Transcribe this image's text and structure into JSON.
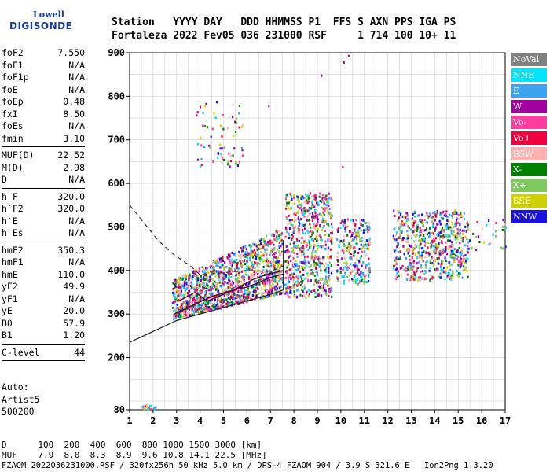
{
  "logo": {
    "line1": "Lowell",
    "line2": "DIGISONDE"
  },
  "header": {
    "line1": "Station   YYYY DAY   DDD HHMMSS P1  FFS S AXN PPS IGA PS",
    "line2": "Fortaleza 2022 Fev05 036 231000 RSF     1 714 100 10+ 11"
  },
  "params": {
    "group1": [
      {
        "name": "foF2",
        "value": "7.550"
      },
      {
        "name": "foF1",
        "value": "N/A"
      },
      {
        "name": "foF1p",
        "value": "N/A"
      },
      {
        "name": "foE",
        "value": "N/A"
      },
      {
        "name": "foEp",
        "value": "0.48"
      },
      {
        "name": "fxI",
        "value": "8.50"
      },
      {
        "name": "foEs",
        "value": "N/A"
      },
      {
        "name": "fmin",
        "value": "3.10"
      }
    ],
    "group2": [
      {
        "name": "MUF(D)",
        "value": "22.52"
      },
      {
        "name": "M(D)",
        "value": "2.98"
      },
      {
        "name": "D",
        "value": "N/A"
      }
    ],
    "group3": [
      {
        "name": "h`F",
        "value": "320.0"
      },
      {
        "name": "h`F2",
        "value": "320.0"
      },
      {
        "name": "h`E",
        "value": "N/A"
      },
      {
        "name": "h`Es",
        "value": "N/A"
      }
    ],
    "group4": [
      {
        "name": "hmF2",
        "value": "350.3"
      },
      {
        "name": "hmF1",
        "value": "N/A"
      },
      {
        "name": "hmE",
        "value": "110.0"
      },
      {
        "name": "yF2",
        "value": "49.9"
      },
      {
        "name": "yF1",
        "value": "N/A"
      },
      {
        "name": "yE",
        "value": "20.0"
      },
      {
        "name": "B0",
        "value": "57.9"
      },
      {
        "name": "B1",
        "value": "1.20"
      }
    ],
    "group5": [
      {
        "name": "C-level",
        "value": "44"
      }
    ]
  },
  "auto": {
    "line1": "Auto:",
    "line2": "Artist5",
    "line3": "500200"
  },
  "legend": [
    {
      "label": "NoVal",
      "color": "#808080"
    },
    {
      "label": "NNE",
      "color": "#00e5ff"
    },
    {
      "label": "E",
      "color": "#3ea0f0"
    },
    {
      "label": "W",
      "color": "#a000a0"
    },
    {
      "label": "Vo-",
      "color": "#ff3ca0"
    },
    {
      "label": "Vo+",
      "color": "#f00040"
    },
    {
      "label": "SSW",
      "color": "#ffb0b0"
    },
    {
      "label": "X-",
      "color": "#008000"
    },
    {
      "label": "X+",
      "color": "#80c860"
    },
    {
      "label": "SSE",
      "color": "#d0d000"
    },
    {
      "label": "NNW",
      "color": "#1a10e0"
    }
  ],
  "footer": {
    "line1": "D      100  200  400  600  800 1000 1500 3000 [km]",
    "line2": "MUF    7.9  8.0  8.3  8.9  9.6 10.8 14.1 22.5 [MHz]",
    "line3": "FZAOM_2022036231000.RSF / 320fx256h 50 kHz 5.0 km / DPS-4 FZAOM 904 / 3.9 S 321.6 E   Ion2Png 1.3.20"
  },
  "chart_data": {
    "type": "scatter",
    "title": "",
    "xlabel": "",
    "ylabel": "",
    "xlim": [
      1,
      17
    ],
    "ylim": [
      80,
      900
    ],
    "xticks": [
      1,
      2,
      3,
      4,
      5,
      6,
      7,
      8,
      9,
      10,
      11,
      12,
      13,
      14,
      15,
      16,
      17
    ],
    "yticks": [
      80,
      200,
      300,
      400,
      500,
      600,
      700,
      800,
      900
    ],
    "grid": true,
    "legend_position": "right",
    "clusters": [
      {
        "x": [
          2.8,
          7.5
        ],
        "y": [
          290,
          470
        ],
        "n": 1400
      },
      {
        "x": [
          7.6,
          9.6
        ],
        "y": [
          340,
          580
        ],
        "n": 650
      },
      {
        "x": [
          9.8,
          11.2
        ],
        "y": [
          370,
          520
        ],
        "n": 260
      },
      {
        "x": [
          12.2,
          15.4
        ],
        "y": [
          380,
          540
        ],
        "n": 650
      },
      {
        "x": [
          3.8,
          5.8
        ],
        "y": [
          640,
          790
        ],
        "n": 70
      },
      {
        "x": [
          15.4,
          17
        ],
        "y": [
          440,
          520
        ],
        "n": 30
      },
      {
        "x": [
          1.5,
          2.1
        ],
        "y": [
          82,
          95
        ],
        "n": 24
      }
    ],
    "lower_trace": {
      "x": [
        2.9,
        3.5,
        4.0,
        4.5,
        5.0,
        5.5,
        6.0,
        6.5,
        7.0,
        7.55
      ],
      "y": [
        300,
        315,
        328,
        340,
        348,
        356,
        362,
        372,
        384,
        392
      ]
    },
    "upper_trace": {
      "x": [
        3.1,
        3.8,
        4.3,
        5.0,
        5.6,
        6.2,
        6.8,
        7.2,
        7.55
      ],
      "y": [
        330,
        350,
        330,
        345,
        360,
        378,
        390,
        395,
        400
      ]
    },
    "dashed_profile": {
      "x": [
        1.0,
        1.6,
        2.2,
        2.8,
        3.2,
        3.6,
        4.0,
        5.0,
        6.0,
        7.0,
        7.55
      ],
      "y": [
        550,
        510,
        470,
        440,
        425,
        410,
        390,
        395,
        400,
        398,
        410
      ]
    },
    "lower_profile": {
      "x": [
        1.0,
        2.0,
        3.0,
        4.0,
        5.0,
        6.0,
        7.0,
        7.55
      ],
      "y": [
        235,
        260,
        285,
        300,
        315,
        330,
        345,
        355
      ]
    }
  }
}
